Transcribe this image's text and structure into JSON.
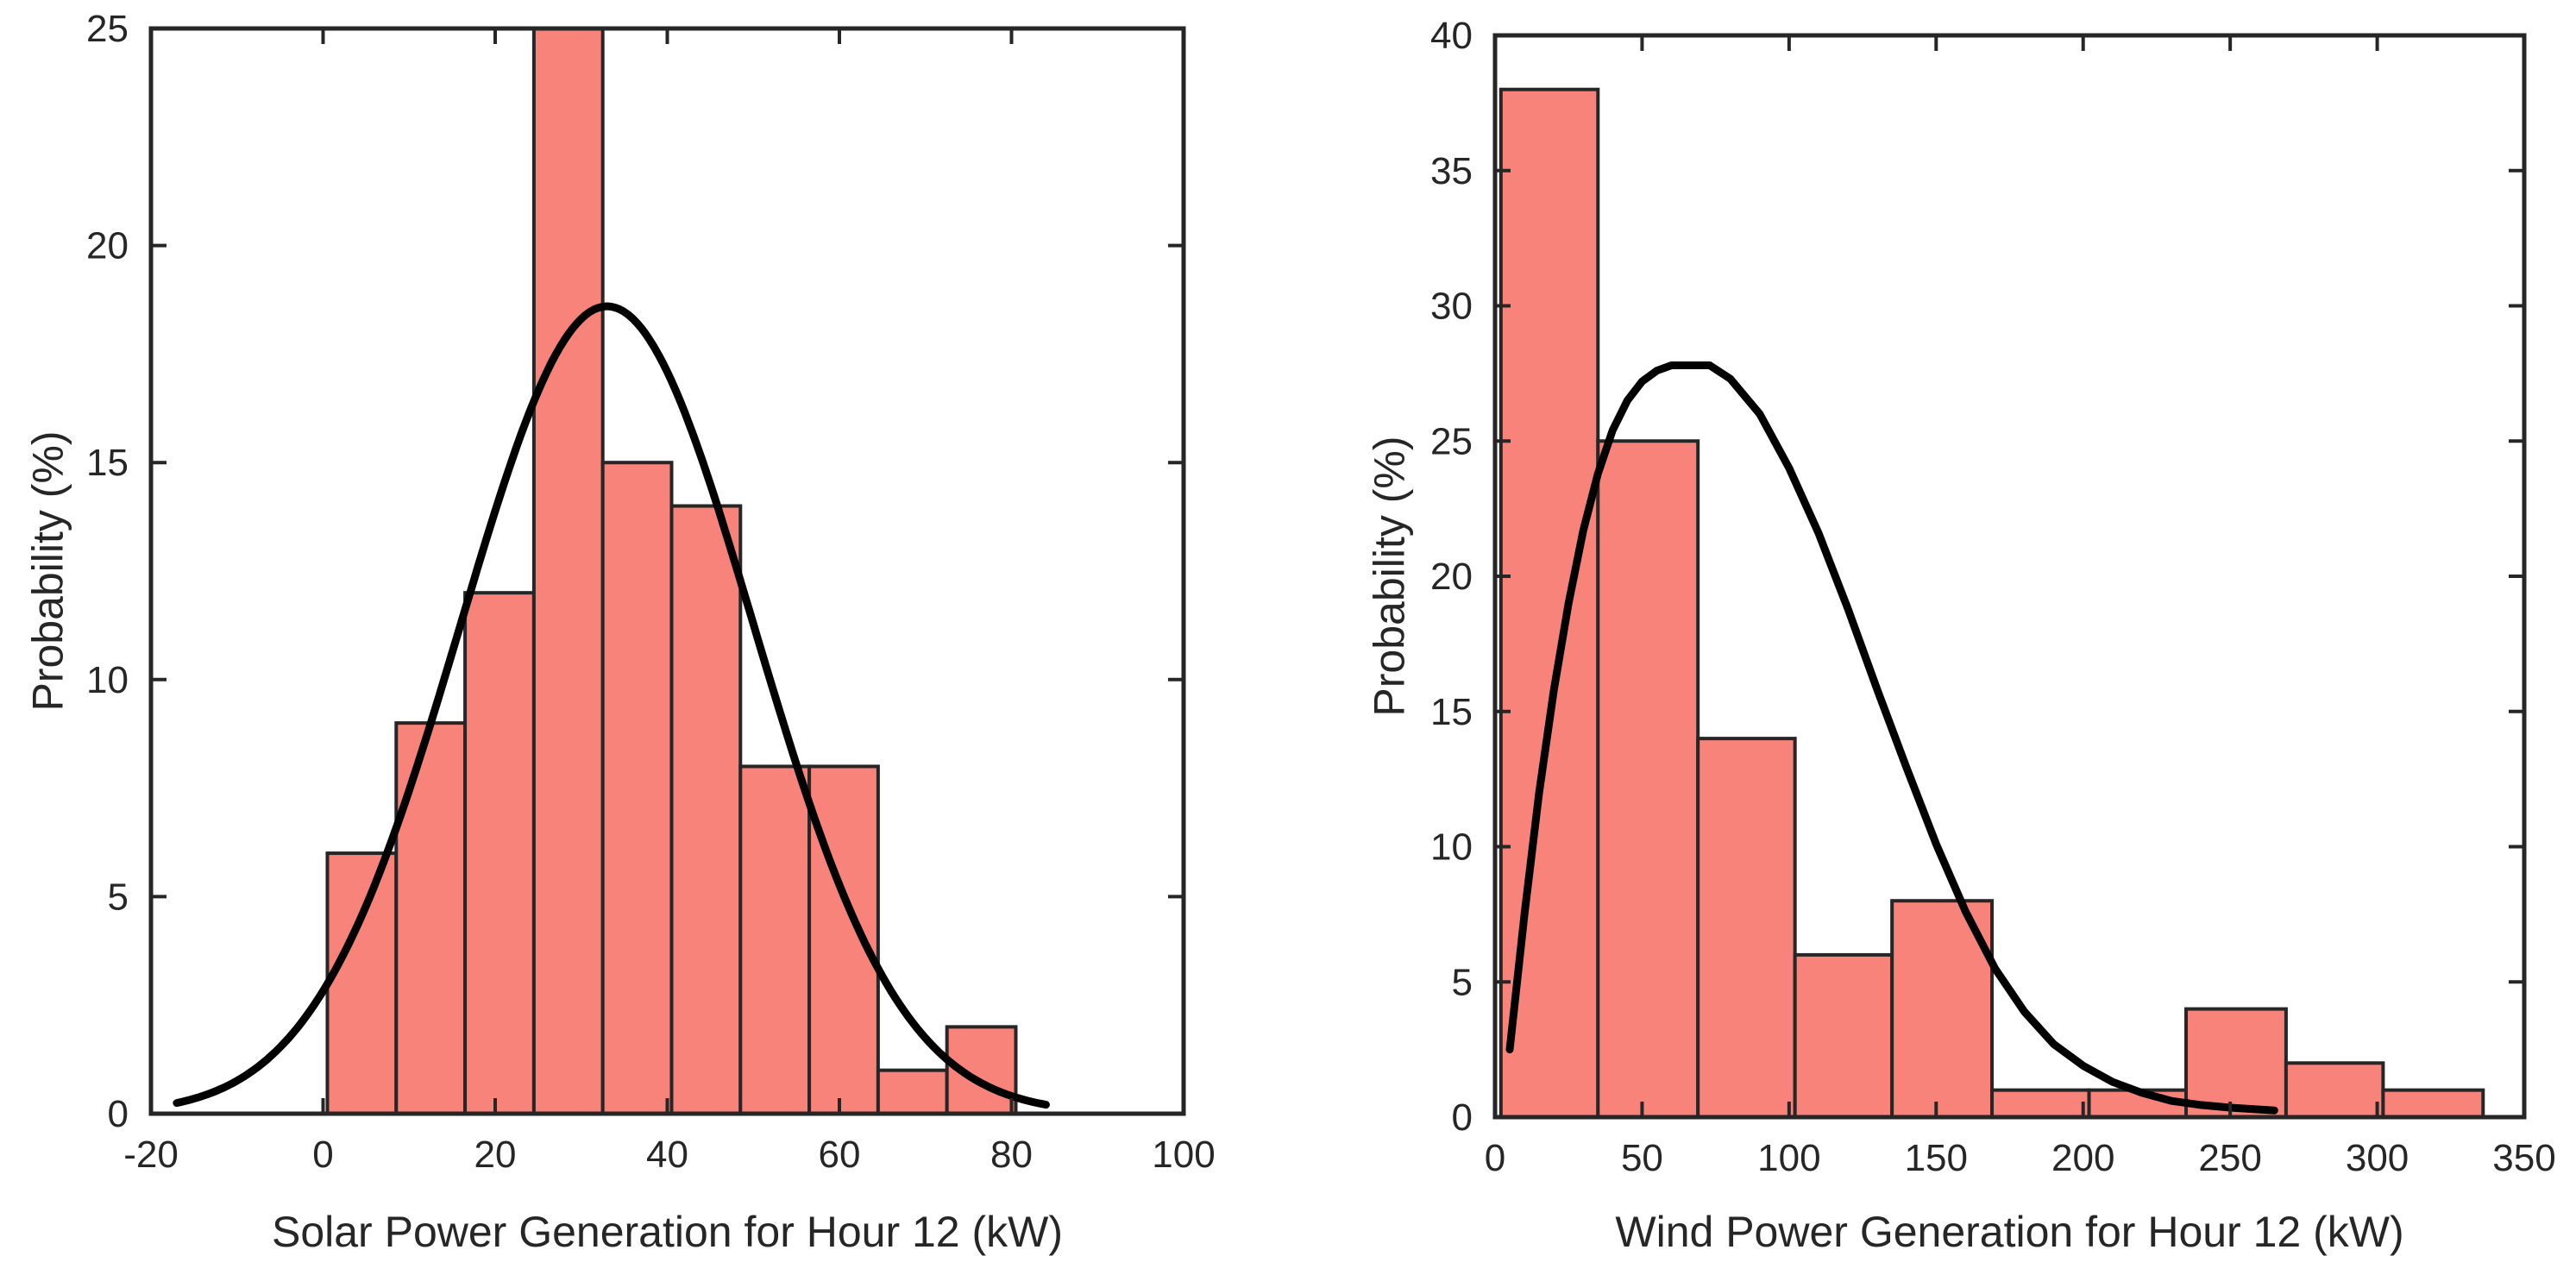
{
  "chart_data": [
    {
      "type": "bar",
      "subtype": "histogram",
      "title": "",
      "xlabel": "Solar Power Generation for Hour 12 (kW)",
      "ylabel": "Probability (%)",
      "xlim": [
        -20,
        100
      ],
      "ylim": [
        0,
        25
      ],
      "xticks": [
        -20,
        0,
        20,
        40,
        60,
        80,
        100
      ],
      "xtick_labels": [
        "-20",
        "0",
        "20",
        "40",
        "60",
        "80",
        "100"
      ],
      "yticks": [
        0,
        5,
        10,
        15,
        20,
        25
      ],
      "ytick_labels": [
        "0",
        "5",
        "10",
        "15",
        "20",
        "25"
      ],
      "bins": [
        {
          "start": 0.5,
          "end": 8.5,
          "value": 6
        },
        {
          "start": 8.5,
          "end": 16.5,
          "value": 9
        },
        {
          "start": 16.5,
          "end": 24.5,
          "value": 12
        },
        {
          "start": 24.5,
          "end": 32.5,
          "value": 25
        },
        {
          "start": 32.5,
          "end": 40.5,
          "value": 15
        },
        {
          "start": 40.5,
          "end": 48.5,
          "value": 14
        },
        {
          "start": 48.5,
          "end": 56.5,
          "value": 8
        },
        {
          "start": 56.5,
          "end": 64.5,
          "value": 8
        },
        {
          "start": 64.5,
          "end": 72.5,
          "value": 1
        },
        {
          "start": 72.5,
          "end": 80.5,
          "value": 2
        }
      ],
      "fit": {
        "distribution": "normal",
        "mean": 33,
        "std": 17,
        "peak": 18.6,
        "range": [
          -17,
          84
        ]
      },
      "colors": {
        "bar_fill": "#F8837A",
        "bar_edge": "#262626",
        "curve": "#000000"
      }
    },
    {
      "type": "bar",
      "subtype": "histogram",
      "title": "",
      "xlabel": "Wind Power Generation for Hour 12 (kW)",
      "ylabel": "Probability (%)",
      "xlim": [
        0,
        350
      ],
      "ylim": [
        0,
        40
      ],
      "xticks": [
        0,
        50,
        100,
        150,
        200,
        250,
        300,
        350
      ],
      "xtick_labels": [
        "0",
        "50",
        "100",
        "150",
        "200",
        "250",
        "300",
        "350"
      ],
      "yticks": [
        0,
        5,
        10,
        15,
        20,
        25,
        30,
        35,
        40
      ],
      "ytick_labels": [
        "0",
        "5",
        "10",
        "15",
        "20",
        "25",
        "30",
        "35",
        "40"
      ],
      "bins": [
        {
          "start": 2,
          "end": 35,
          "value": 38
        },
        {
          "start": 35,
          "end": 69,
          "value": 25
        },
        {
          "start": 69,
          "end": 102,
          "value": 14
        },
        {
          "start": 102,
          "end": 135,
          "value": 6
        },
        {
          "start": 135,
          "end": 169,
          "value": 8
        },
        {
          "start": 169,
          "end": 202,
          "value": 1
        },
        {
          "start": 202,
          "end": 235,
          "value": 1
        },
        {
          "start": 235,
          "end": 269,
          "value": 4
        },
        {
          "start": 269,
          "end": 302,
          "value": 2
        },
        {
          "start": 302,
          "end": 336,
          "value": 1
        }
      ],
      "fit": {
        "distribution": "weibull",
        "peak_x": 73,
        "peak": 27.8,
        "range": [
          5,
          265
        ],
        "samples": [
          [
            5,
            2.5
          ],
          [
            10,
            7.5
          ],
          [
            15,
            12.0
          ],
          [
            20,
            15.8
          ],
          [
            25,
            19.0
          ],
          [
            30,
            21.7
          ],
          [
            35,
            23.8
          ],
          [
            40,
            25.4
          ],
          [
            45,
            26.5
          ],
          [
            50,
            27.2
          ],
          [
            55,
            27.6
          ],
          [
            60,
            27.8
          ],
          [
            65,
            27.8
          ],
          [
            70,
            27.8
          ],
          [
            73,
            27.8
          ],
          [
            80,
            27.3
          ],
          [
            90,
            26.0
          ],
          [
            100,
            24.0
          ],
          [
            110,
            21.6
          ],
          [
            120,
            18.8
          ],
          [
            130,
            15.8
          ],
          [
            140,
            12.9
          ],
          [
            150,
            10.1
          ],
          [
            160,
            7.6
          ],
          [
            170,
            5.5
          ],
          [
            180,
            3.9
          ],
          [
            190,
            2.7
          ],
          [
            200,
            1.9
          ],
          [
            210,
            1.3
          ],
          [
            220,
            0.9
          ],
          [
            230,
            0.6
          ],
          [
            240,
            0.45
          ],
          [
            250,
            0.35
          ],
          [
            265,
            0.25
          ]
        ]
      },
      "colors": {
        "bar_fill": "#F8837A",
        "bar_edge": "#262626",
        "curve": "#000000"
      }
    }
  ]
}
